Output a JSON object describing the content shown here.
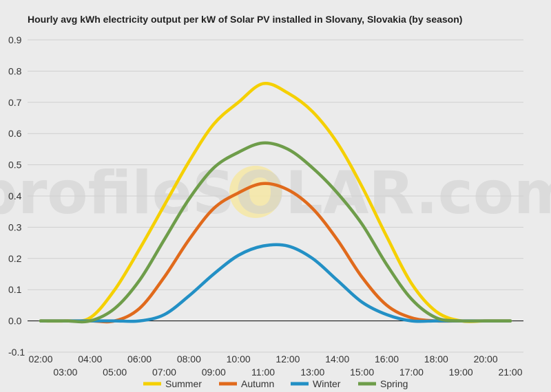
{
  "chart_data": {
    "type": "line",
    "title": "Hourly avg kWh electricity output per kW of Solar PV installed in Slovany, Slovakia (by season)",
    "xlabel": "",
    "ylabel": "",
    "ylim": [
      -0.1,
      0.9
    ],
    "yticks": [
      "0.9",
      "0.8",
      "0.7",
      "0.6",
      "0.5",
      "0.4",
      "0.3",
      "0.2",
      "0.1",
      "0.0",
      "-0.1"
    ],
    "x": [
      "02:00",
      "03:00",
      "04:00",
      "05:00",
      "06:00",
      "07:00",
      "08:00",
      "09:00",
      "10:00",
      "11:00",
      "12:00",
      "13:00",
      "14:00",
      "15:00",
      "16:00",
      "17:00",
      "18:00",
      "19:00",
      "20:00",
      "21:00"
    ],
    "grid": true,
    "legend_position": "bottom",
    "watermark": "profileSOLAR.com",
    "series": [
      {
        "name": "Summer",
        "color": "#f5d000",
        "values": [
          0.0,
          0.0,
          0.01,
          0.1,
          0.23,
          0.37,
          0.51,
          0.63,
          0.7,
          0.76,
          0.73,
          0.67,
          0.57,
          0.43,
          0.27,
          0.12,
          0.03,
          0.0,
          0.0,
          0.0
        ]
      },
      {
        "name": "Autumn",
        "color": "#e06a1c",
        "values": [
          0.0,
          0.0,
          0.0,
          0.0,
          0.04,
          0.14,
          0.26,
          0.36,
          0.41,
          0.44,
          0.42,
          0.36,
          0.26,
          0.14,
          0.05,
          0.01,
          0.0,
          0.0,
          0.0,
          0.0
        ]
      },
      {
        "name": "Winter",
        "color": "#2390c5",
        "values": [
          0.0,
          0.0,
          0.0,
          0.0,
          0.0,
          0.02,
          0.08,
          0.15,
          0.21,
          0.24,
          0.24,
          0.2,
          0.13,
          0.06,
          0.02,
          0.0,
          0.0,
          0.0,
          0.0,
          0.0
        ]
      },
      {
        "name": "Spring",
        "color": "#6e9d4a",
        "values": [
          0.0,
          0.0,
          0.0,
          0.04,
          0.13,
          0.26,
          0.39,
          0.49,
          0.54,
          0.57,
          0.55,
          0.49,
          0.41,
          0.31,
          0.18,
          0.07,
          0.01,
          0.0,
          0.0,
          0.0
        ]
      }
    ]
  }
}
